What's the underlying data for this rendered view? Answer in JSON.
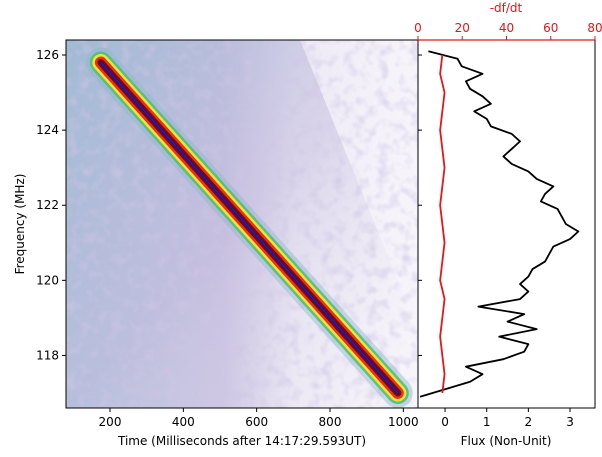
{
  "chart_data": [
    {
      "type": "heatmap",
      "xlabel": "Time (Milliseconds after 14:17:29.593UT)",
      "ylabel": "Frequency (MHz)",
      "xlim": [
        80,
        1040
      ],
      "ylim": [
        116.6,
        126.4
      ],
      "xticks": [
        200,
        400,
        600,
        800,
        1000
      ],
      "yticks": [
        118,
        120,
        122,
        124,
        126
      ],
      "colormap": [
        "#f4f1f8",
        "#c9bfe0",
        "#8fb8cc",
        "#4fc07a",
        "#f2e432",
        "#e8321e",
        "#7a0a0a",
        "#1a1060"
      ],
      "drift_line": {
        "color": "#1a1ad8",
        "x": [
          175,
          985
        ],
        "y": [
          125.8,
          117.0
        ]
      }
    },
    {
      "type": "line",
      "xlabel": "Flux (Non-Unit)",
      "xlim": [
        -0.65,
        3.6
      ],
      "ylim": [
        116.6,
        126.4
      ],
      "xticks": [
        0,
        1,
        2,
        3
      ],
      "top_axis": {
        "label": "-df/dt",
        "xlim": [
          0,
          80
        ],
        "xticks": [
          0,
          20,
          40,
          60,
          80
        ],
        "color": "#e8141a"
      },
      "series": [
        {
          "color": "#000000",
          "axis": "bottom",
          "y": [
            116.9,
            117.1,
            117.3,
            117.5,
            117.7,
            117.9,
            118.1,
            118.3,
            118.5,
            118.7,
            118.9,
            119.1,
            119.3,
            119.5,
            119.7,
            119.9,
            120.1,
            120.3,
            120.5,
            120.7,
            120.9,
            121.1,
            121.3,
            121.5,
            121.7,
            121.9,
            122.1,
            122.3,
            122.5,
            122.7,
            122.9,
            123.1,
            123.3,
            123.5,
            123.7,
            123.9,
            124.1,
            124.3,
            124.5,
            124.7,
            124.9,
            125.1,
            125.3,
            125.5,
            125.7,
            125.9,
            126.1
          ],
          "values": [
            -0.6,
            0.0,
            0.6,
            0.9,
            0.5,
            1.4,
            1.9,
            2.0,
            1.3,
            2.2,
            1.5,
            1.9,
            0.8,
            1.8,
            2.0,
            1.8,
            2.0,
            2.1,
            2.4,
            2.5,
            2.6,
            3.0,
            3.2,
            2.9,
            2.8,
            2.7,
            2.3,
            2.4,
            2.6,
            2.2,
            2.0,
            1.6,
            1.4,
            1.6,
            1.8,
            1.6,
            1.1,
            1.0,
            0.7,
            1.1,
            0.9,
            0.6,
            0.5,
            0.9,
            0.4,
            0.3,
            -0.4
          ]
        },
        {
          "color": "#e8141a",
          "axis": "top",
          "y": [
            117.0,
            117.5,
            118.0,
            118.5,
            119.0,
            119.5,
            120.0,
            120.5,
            121.0,
            121.5,
            122.0,
            122.5,
            123.0,
            123.5,
            124.0,
            124.5,
            125.0,
            125.5,
            126.0
          ],
          "values": [
            11,
            12,
            11,
            10,
            11,
            12,
            10,
            11,
            12,
            11,
            10,
            11,
            12,
            11,
            10,
            11,
            12,
            10,
            11
          ]
        }
      ]
    }
  ]
}
